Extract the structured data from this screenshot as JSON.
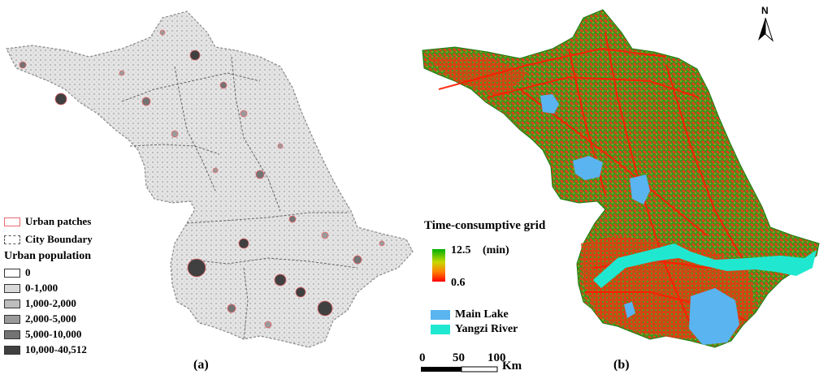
{
  "panel_a": {
    "label": "(a)",
    "legend": {
      "urban_patches": "Urban patches",
      "city_boundary": "City Boundary",
      "population_title": "Urban population",
      "population_classes": [
        {
          "label": "0",
          "color": "#ffffff"
        },
        {
          "label": "0-1,000",
          "color": "#d9d9d9"
        },
        {
          "label": "1,000-2,000",
          "color": "#bdbdbd"
        },
        {
          "label": "2,000-5,000",
          "color": "#9a9a9a"
        },
        {
          "label": "5,000-10,000",
          "color": "#737373"
        },
        {
          "label": "10,000-40,512",
          "color": "#404040"
        }
      ],
      "patch_color": "#e8696e"
    }
  },
  "panel_b": {
    "label": "(b)",
    "legend": {
      "title": "Time-consumptive grid",
      "max_value": "12.5",
      "min_value": "0.6",
      "unit": "(min)",
      "lake_label": "Main Lake",
      "river_label": "Yangzi River",
      "lake_color": "#5ab4f0",
      "river_color": "#20e8d0",
      "high_color": "#00b000",
      "low_color": "#ff0000"
    },
    "scale_bar": {
      "ticks": [
        "0",
        "50",
        "100"
      ],
      "unit": "Km"
    },
    "north_label": "N"
  }
}
